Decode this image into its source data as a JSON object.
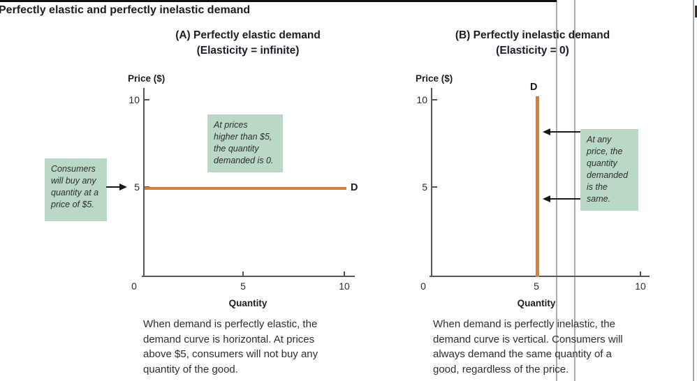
{
  "figure": {
    "title": "Perfectly elastic and perfectly inelastic demand"
  },
  "colors": {
    "demand_line": "#d57e35",
    "callout_background": "#b9d8c6",
    "axis": "#55565a",
    "page_guide_line": "#aeaeae"
  },
  "panels": [
    {
      "label": "A",
      "title": "(A) Perfectly elastic demand",
      "subtitle": "(Elasticity = infinite)",
      "y_axis_label": "Price ($)",
      "x_axis_label": "Quantity",
      "y_ticks": [
        "10",
        "5"
      ],
      "x_ticks": [
        "0",
        "5",
        "10"
      ],
      "curve_label": "D",
      "callouts": [
        {
          "text": "Consumers\nwill buy any\nquantity at a\nprice of $5."
        },
        {
          "text": "At prices\nhigher than $5,\nthe quantity\ndemanded is 0."
        }
      ],
      "caption": "When demand is perfectly elastic, the\ndemand curve is horizontal. At prices\nabove $5, consumers will not buy any\nquantity of the good."
    },
    {
      "label": "B",
      "title": "(B) Perfectly inelastic demand",
      "subtitle": "(Elasticity = 0)",
      "y_axis_label": "Price ($)",
      "x_axis_label": "Quantity",
      "y_ticks": [
        "10",
        "5"
      ],
      "x_ticks": [
        "0",
        "5",
        "10"
      ],
      "curve_label": "D",
      "callouts": [
        {
          "text": "At any\nprice, the\nquantity\ndemanded\nis the\nsame."
        }
      ],
      "caption": "When demand is perfectly inelastic, the\ndemand curve is vertical. Consumers will\nalways demand the same quantity of a\ngood, regardless of the price."
    }
  ],
  "chart_data": [
    {
      "type": "line",
      "title": "(A) Perfectly elastic demand (Elasticity = infinite)",
      "xlabel": "Quantity",
      "ylabel": "Price ($)",
      "xlim": [
        0,
        10
      ],
      "ylim": [
        0,
        10
      ],
      "x_ticks": [
        0,
        5,
        10
      ],
      "y_ticks": [
        5,
        10
      ],
      "grid": false,
      "legend": "none",
      "series": [
        {
          "name": "D",
          "color": "#d57e35",
          "points": [
            {
              "x": 0,
              "y": 5
            },
            {
              "x": 10,
              "y": 5
            }
          ]
        }
      ],
      "annotations": [
        "Consumers will buy any quantity at a price of $5.",
        "At prices higher than $5, the quantity demanded is 0."
      ]
    },
    {
      "type": "line",
      "title": "(B) Perfectly inelastic demand (Elasticity = 0)",
      "xlabel": "Quantity",
      "ylabel": "Price ($)",
      "xlim": [
        0,
        10
      ],
      "ylim": [
        0,
        10
      ],
      "x_ticks": [
        0,
        5,
        10
      ],
      "y_ticks": [
        5,
        10
      ],
      "grid": false,
      "legend": "none",
      "series": [
        {
          "name": "D",
          "color": "#d57e35",
          "points": [
            {
              "x": 5,
              "y": 0
            },
            {
              "x": 5,
              "y": 10
            }
          ]
        }
      ],
      "annotations": [
        "At any price, the quantity demanded is the same."
      ]
    }
  ]
}
